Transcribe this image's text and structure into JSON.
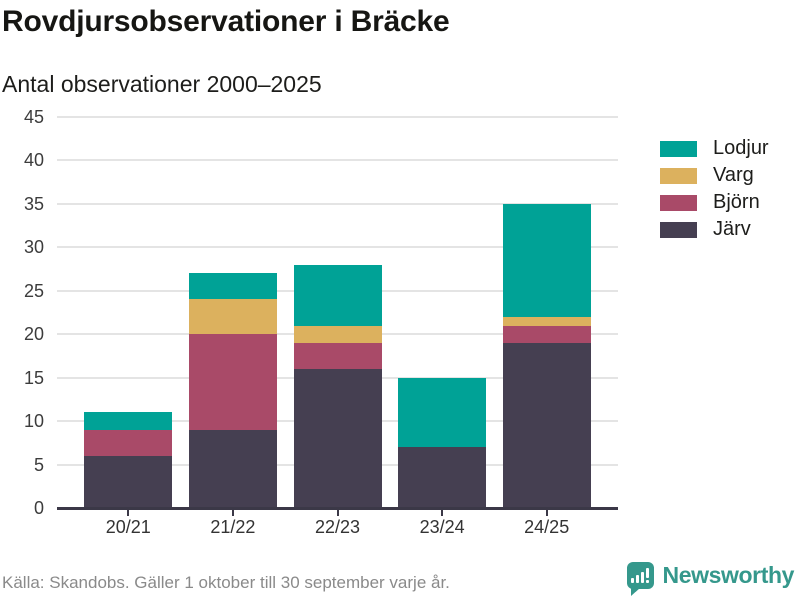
{
  "header": {
    "title": "Rovdjursobservationer i Bräcke",
    "subtitle": "Antal observationer 2000–2025"
  },
  "chart_data": {
    "type": "bar",
    "stacked": true,
    "title": "Rovdjursobservationer i Bräcke",
    "subtitle": "Antal observationer 2000–2025",
    "categories": [
      "20/21",
      "21/22",
      "22/23",
      "23/24",
      "24/25"
    ],
    "series": [
      {
        "name": "Järv",
        "color": "#453f51",
        "values": [
          6,
          9,
          16,
          7,
          19
        ]
      },
      {
        "name": "Björn",
        "color": "#a94a68",
        "values": [
          3,
          11,
          3,
          0,
          2
        ]
      },
      {
        "name": "Varg",
        "color": "#dcb15e",
        "values": [
          0,
          4,
          2,
          0,
          1
        ]
      },
      {
        "name": "Lodjur",
        "color": "#00a296",
        "values": [
          2,
          3,
          7,
          8,
          13
        ]
      }
    ],
    "totals": [
      11,
      27,
      28,
      15,
      35
    ],
    "xlabel": "",
    "ylabel": "",
    "ylim": [
      0,
      45
    ],
    "yticks": [
      0,
      5,
      10,
      15,
      20,
      25,
      30,
      35,
      40,
      45
    ],
    "grid": "horizontal",
    "legend_position": "right",
    "legend_order": [
      "Lodjur",
      "Varg",
      "Björn",
      "Järv"
    ]
  },
  "footer": {
    "source": "Källa: Skandobs. Gäller 1 oktober till 30 september varje år.",
    "brand": "Newsworthy"
  },
  "colors": {
    "axis": "#3b3847",
    "grid": "#e4e4e4",
    "text": "#1d1d1b",
    "muted": "#8a8a8a",
    "brand_teal": "#35988c"
  }
}
